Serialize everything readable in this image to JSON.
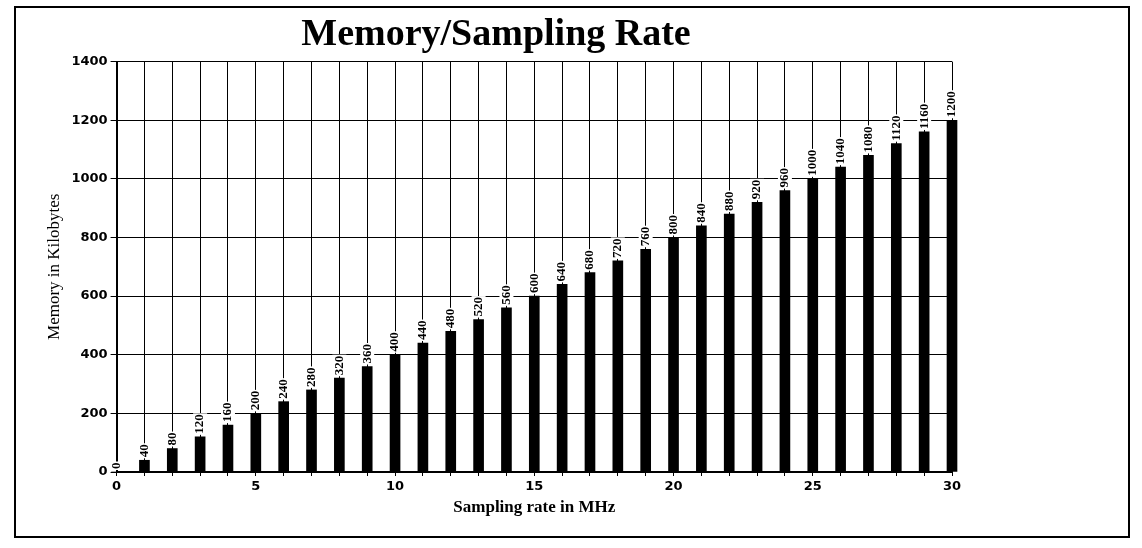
{
  "chart_data": {
    "type": "bar",
    "title": "Memory/Sampling Rate",
    "xlabel": "Sampling rate in MHz",
    "ylabel": "Memory in Kilobytes",
    "x": [
      0,
      1,
      2,
      3,
      4,
      5,
      6,
      7,
      8,
      9,
      10,
      11,
      12,
      13,
      14,
      15,
      16,
      17,
      18,
      19,
      20,
      21,
      22,
      23,
      24,
      25,
      26,
      27,
      28,
      29,
      30
    ],
    "values": [
      0,
      40,
      80,
      120,
      160,
      200,
      240,
      280,
      320,
      360,
      400,
      440,
      480,
      520,
      560,
      600,
      640,
      680,
      720,
      760,
      800,
      840,
      880,
      920,
      960,
      1000,
      1040,
      1080,
      1120,
      1160,
      1200
    ],
    "color": "#000000",
    "data_labels": true,
    "grid": true,
    "legend": false,
    "xlim": [
      0,
      30
    ],
    "xticks": [
      0,
      {
        "value": 1,
        "label": null
      },
      {
        "value": 2,
        "label": null
      },
      {
        "value": 3,
        "label": null
      },
      {
        "value": 4,
        "label": null
      },
      5,
      {
        "value": 6,
        "label": null
      },
      {
        "value": 7,
        "label": null
      },
      {
        "value": 8,
        "label": null
      },
      {
        "value": 9,
        "label": null
      },
      10,
      {
        "value": 11,
        "label": null
      },
      {
        "value": 12,
        "label": null
      },
      {
        "value": 13,
        "label": null
      },
      {
        "value": 14,
        "label": null
      },
      15,
      {
        "value": 16,
        "label": null
      },
      {
        "value": 17,
        "label": null
      },
      {
        "value": 18,
        "label": null
      },
      {
        "value": 19,
        "label": null
      },
      20,
      {
        "value": 21,
        "label": null
      },
      {
        "value": 22,
        "label": null
      },
      {
        "value": 23,
        "label": null
      },
      {
        "value": 24,
        "label": null
      },
      25,
      {
        "value": 26,
        "label": null
      },
      {
        "value": 27,
        "label": null
      },
      {
        "value": 28,
        "label": null
      },
      {
        "value": 29,
        "label": null
      },
      30
    ],
    "ylim": [
      0,
      1400
    ],
    "yticks": [
      0,
      200,
      400,
      600,
      800,
      1000,
      1200,
      1400
    ]
  }
}
